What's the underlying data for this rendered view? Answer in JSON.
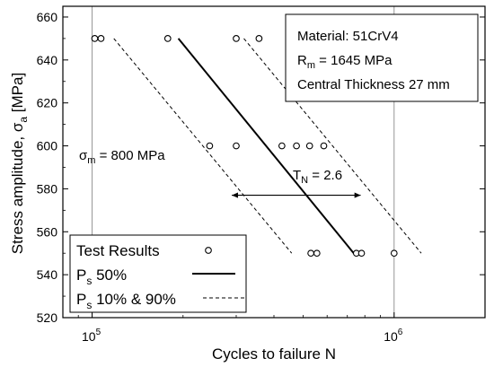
{
  "chart_data": {
    "type": "scatter",
    "xlabel": "Cycles to failure N",
    "ylabel": "Stress amplitude, σa [MPa]",
    "ylabel_parts": {
      "main": "Stress amplitude, σ",
      "sub": "a",
      "unit": " [MPa]"
    },
    "x_scale": "log",
    "xlim": [
      80000,
      2000000
    ],
    "ylim": [
      520,
      665
    ],
    "x_ticks": [
      {
        "value": 100000,
        "base": "10",
        "exp": "5"
      },
      {
        "value": 1000000,
        "base": "10",
        "exp": "6"
      }
    ],
    "y_ticks": [
      520,
      540,
      560,
      580,
      600,
      620,
      640,
      660
    ],
    "grid": "vertical at decades",
    "series": [
      {
        "name": "Test Results",
        "kind": "markers",
        "points": [
          [
            102000,
            650
          ],
          [
            107000,
            650
          ],
          [
            178000,
            650
          ],
          [
            300000,
            650
          ],
          [
            357000,
            650
          ],
          [
            245000,
            600
          ],
          [
            300000,
            600
          ],
          [
            425000,
            600
          ],
          [
            475000,
            600
          ],
          [
            525000,
            600
          ],
          [
            585000,
            600
          ],
          [
            530000,
            550
          ],
          [
            555000,
            550
          ],
          [
            750000,
            550
          ],
          [
            780000,
            550
          ],
          [
            1000000,
            550
          ]
        ]
      },
      {
        "name": "Ps 50%",
        "kind": "solid line",
        "points": [
          [
            193000,
            650
          ],
          [
            735000,
            550
          ]
        ]
      },
      {
        "name": "Ps 10% & 90%",
        "kind": "dashed lines",
        "lines": [
          [
            [
              118000,
              650
            ],
            [
              458000,
              550
            ]
          ],
          [
            [
              318000,
              650
            ],
            [
              1230000,
              550
            ]
          ]
        ]
      }
    ],
    "annotations": {
      "sigma_m": {
        "symbol": "σ",
        "sub": "m",
        "rest": " = 800 MPa"
      },
      "tn": {
        "symbol": "T",
        "sub": "N",
        "rest": " = 2.6",
        "arrow_from_x": 290000,
        "arrow_to_x": 775000,
        "y": 577
      }
    },
    "info_box": {
      "material": "Material: 51CrV4",
      "rm": {
        "symbol": "R",
        "sub": "m",
        "rest": " = 1645 MPa"
      },
      "thickness": "Central Thickness 27 mm"
    },
    "legend": {
      "position": "bottom-left",
      "entries": [
        {
          "label": "Test Results",
          "style": "marker"
        },
        {
          "label": "P",
          "sub": "s",
          "rest": " 50%",
          "style": "solid"
        },
        {
          "label": "P",
          "sub": "s",
          "rest": " 10% & 90%",
          "style": "dashed"
        }
      ]
    }
  }
}
